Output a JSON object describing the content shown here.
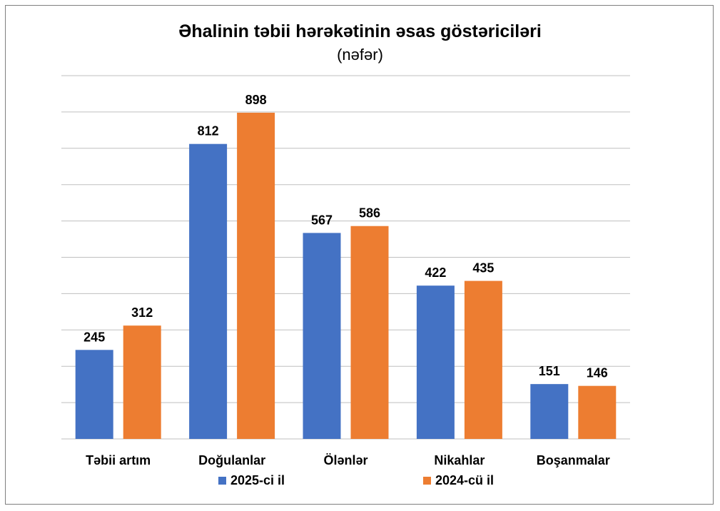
{
  "chart_data": {
    "type": "bar",
    "title": "Əhalinin təbii hərəkətinin əsas göstəriciləri",
    "subtitle": "(nəfər)",
    "categories": [
      "Təbii artım",
      "Doğulanlar",
      "Ölənlər",
      "Nikahlar",
      "Boşanmalar"
    ],
    "series": [
      {
        "name": "2025-ci il",
        "color": "#4472c4",
        "values": [
          245,
          812,
          567,
          422,
          151
        ]
      },
      {
        "name": "2024-cü il",
        "color": "#ed7d31",
        "values": [
          312,
          898,
          586,
          435,
          146
        ]
      }
    ],
    "ylim": [
      0,
      1000
    ],
    "grid": true,
    "xlabel": "",
    "ylabel": "",
    "legend": "bottom"
  }
}
